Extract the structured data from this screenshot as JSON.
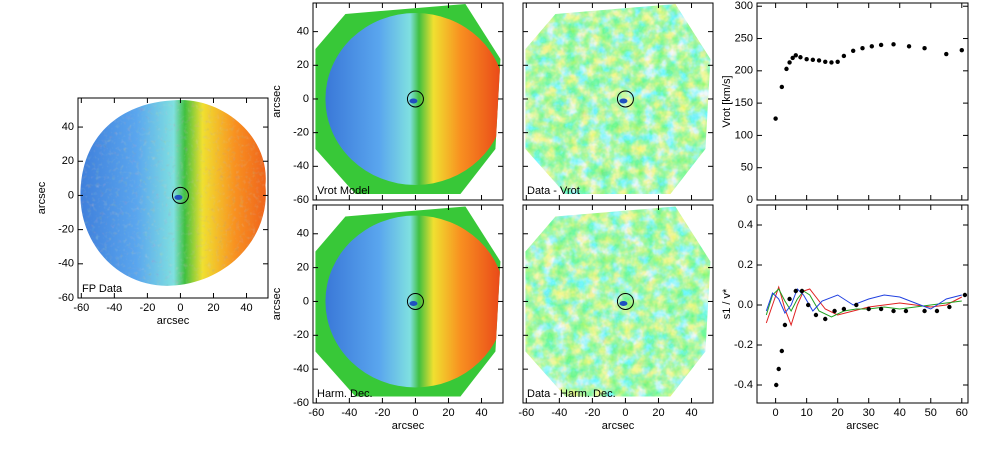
{
  "chart_data": [
    {
      "type": "image",
      "label": "FP Data",
      "xlabel": "arcsec",
      "ylabel": "arcsec",
      "xlim": [
        -62,
        53
      ],
      "ylim": [
        -60,
        57
      ],
      "xticks": [
        -60,
        -40,
        -20,
        0,
        20,
        40
      ],
      "yticks": [
        -60,
        -40,
        -20,
        0,
        20,
        40
      ],
      "xtick_labels": true,
      "ytick_labels": true
    },
    {
      "type": "image",
      "label": "Vrot Model",
      "ylabel": "arcsec",
      "xlim": [
        -62,
        53
      ],
      "ylim": [
        -60,
        57
      ],
      "xticks": [
        -60,
        -40,
        -20,
        0,
        20,
        40
      ],
      "yticks": [
        -60,
        -40,
        -20,
        0,
        20,
        40
      ],
      "xtick_labels": false,
      "ytick_labels": true
    },
    {
      "type": "image",
      "label": "Data - Vrot",
      "xlim": [
        -62,
        53
      ],
      "ylim": [
        -60,
        57
      ],
      "xticks": [
        -60,
        -40,
        -20,
        0,
        20,
        40
      ],
      "yticks": [
        -60,
        -40,
        -20,
        0,
        20,
        40
      ],
      "xtick_labels": false,
      "ytick_labels": false
    },
    {
      "type": "image",
      "label": "Harm. Dec.",
      "xlabel": "arcsec",
      "ylabel": "arcsec",
      "xlim": [
        -62,
        53
      ],
      "ylim": [
        -60,
        57
      ],
      "xticks": [
        -60,
        -40,
        -20,
        0,
        20,
        40
      ],
      "yticks": [
        -60,
        -40,
        -20,
        0,
        20,
        40
      ],
      "xtick_labels": true,
      "ytick_labels": true
    },
    {
      "type": "image",
      "label": "Data - Harm. Dec.",
      "xlabel": "arcsec",
      "xlim": [
        -62,
        53
      ],
      "ylim": [
        -60,
        57
      ],
      "xticks": [
        -60,
        -40,
        -20,
        0,
        20,
        40
      ],
      "yticks": [
        -60,
        -40,
        -20,
        0,
        20,
        40
      ],
      "xtick_labels": true,
      "ytick_labels": false
    },
    {
      "type": "scatter",
      "ylabel": "Vrot  [km/s]",
      "xlim": [
        -6,
        62
      ],
      "ylim": [
        0,
        305
      ],
      "xticks": [
        0,
        10,
        20,
        30,
        40,
        50,
        60
      ],
      "yticks": [
        0,
        50,
        100,
        150,
        200,
        250,
        300
      ],
      "xtick_labels": false,
      "ytick_labels": true,
      "series": [
        {
          "color": "#000000",
          "x": [
            0,
            2,
            3.5,
            4.5,
            5.5,
            6.5,
            8,
            10,
            12,
            14,
            16,
            18,
            20,
            22,
            25,
            28,
            31,
            34,
            38,
            43,
            48,
            55,
            60
          ],
          "values": [
            126,
            175,
            203,
            213,
            220,
            224,
            221,
            218,
            217,
            216,
            214,
            213,
            214,
            223,
            231,
            235,
            238,
            240,
            241,
            238,
            235,
            226,
            232
          ]
        }
      ]
    },
    {
      "type": "scatter",
      "ylabel": "s1 / v*",
      "xlabel": "arcsec",
      "xlim": [
        -6,
        62
      ],
      "ylim": [
        -0.49,
        0.5
      ],
      "xticks": [
        0,
        10,
        20,
        30,
        40,
        50,
        60
      ],
      "yticks": [
        -0.4,
        -0.2,
        {
          "value": 0,
          "label": "0.0"
        },
        0.2,
        0.4
      ],
      "xtick_labels": true,
      "ytick_labels": true,
      "series": [
        {
          "color": "#e02020",
          "line": true,
          "x": [
            -3,
            -1,
            1,
            3,
            5,
            7,
            9,
            11,
            13,
            16,
            20,
            25,
            30,
            35,
            40,
            45,
            50,
            55,
            60
          ],
          "values": [
            -0.09,
            0.0,
            0.09,
            -0.02,
            -0.1,
            0.0,
            0.07,
            0.08,
            0.04,
            -0.02,
            -0.05,
            -0.03,
            -0.01,
            0.0,
            0.01,
            0.0,
            -0.01,
            0.0,
            0.04
          ]
        },
        {
          "color": "#20a020",
          "line": true,
          "x": [
            -3,
            -1,
            1,
            3,
            5,
            7,
            9,
            11,
            14,
            18,
            22,
            26,
            30,
            35,
            40,
            45,
            50,
            55,
            60
          ],
          "values": [
            -0.05,
            0.05,
            0.08,
            0.02,
            -0.03,
            0.03,
            0.07,
            0.05,
            -0.03,
            -0.06,
            -0.03,
            -0.02,
            -0.02,
            -0.01,
            -0.02,
            -0.01,
            0.0,
            0.01,
            0.02
          ]
        },
        {
          "color": "#2040e0",
          "line": true,
          "x": [
            -3,
            -1,
            1,
            3,
            5,
            7,
            9,
            12,
            15,
            20,
            25,
            30,
            35,
            40,
            45,
            50,
            55,
            60
          ],
          "values": [
            -0.03,
            0.06,
            0.03,
            -0.04,
            0.0,
            0.08,
            0.05,
            -0.03,
            0.02,
            0.05,
            0.0,
            0.03,
            0.05,
            0.04,
            0.01,
            -0.02,
            0.03,
            0.05
          ]
        },
        {
          "color": "#000000",
          "x": [
            0.2,
            1,
            2,
            3,
            4.5,
            6.5,
            8.5,
            10.5,
            13,
            16,
            19,
            22,
            26,
            30,
            34,
            38,
            42,
            48,
            52,
            56,
            61
          ],
          "values": [
            -0.4,
            -0.32,
            -0.23,
            -0.1,
            0.03,
            0.07,
            0.07,
            0.0,
            -0.05,
            -0.07,
            -0.03,
            -0.02,
            0.0,
            -0.02,
            -0.02,
            -0.03,
            -0.03,
            -0.03,
            -0.03,
            -0.01,
            0.05
          ]
        }
      ]
    }
  ]
}
